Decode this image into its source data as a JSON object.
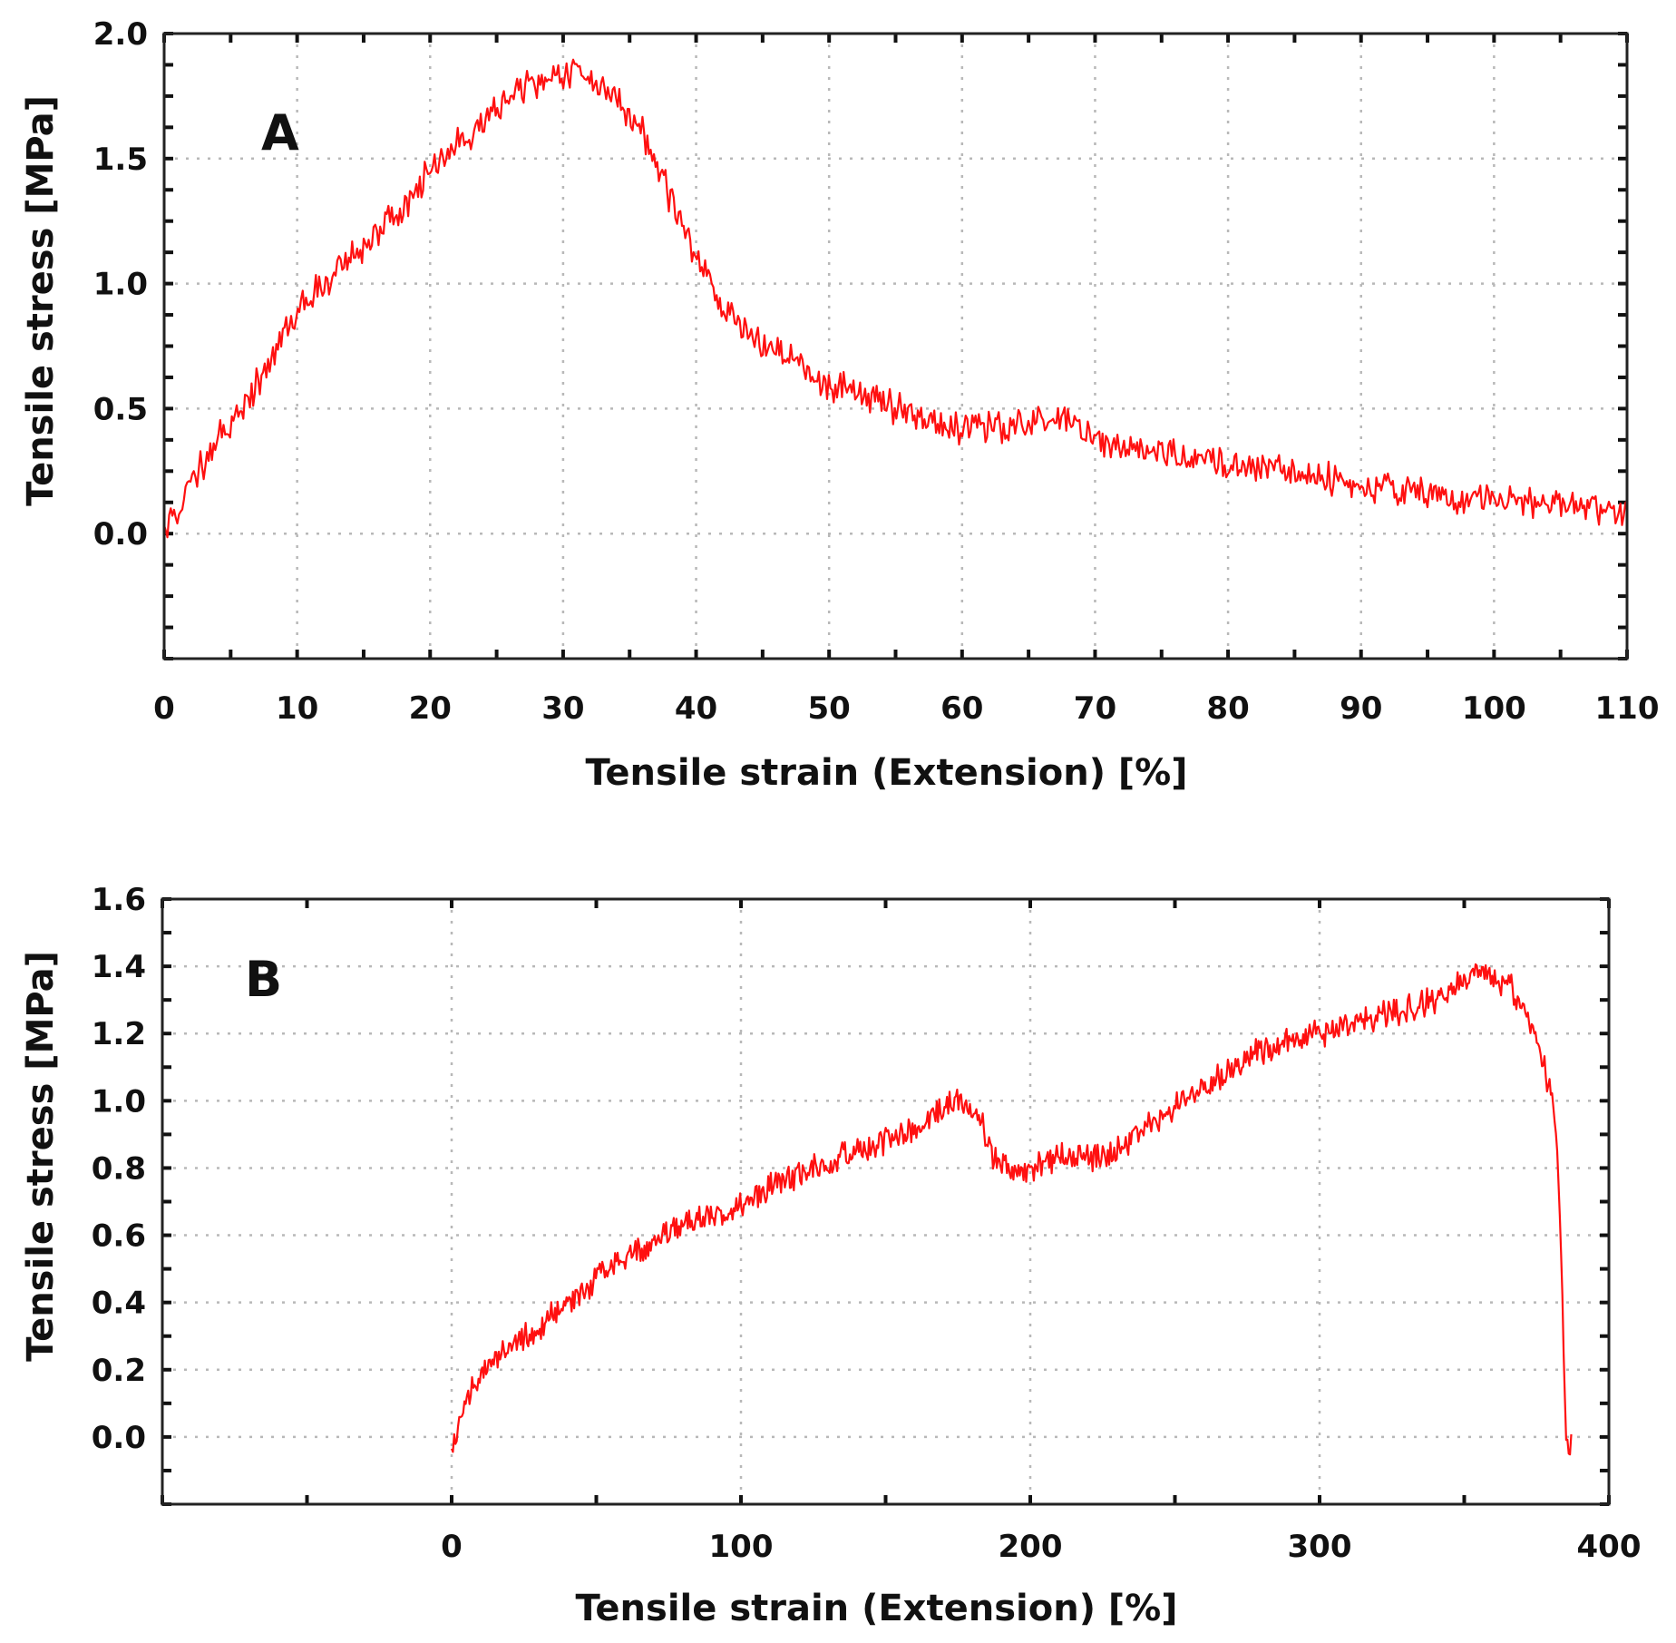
{
  "chart_data": [
    {
      "type": "line",
      "panel_label": "A",
      "xlabel": "Tensile strain (Extension) [%]",
      "ylabel": "Tensile stress [MPa]",
      "xlim": [
        0,
        110
      ],
      "ylim": [
        -0.5,
        2.0
      ],
      "x_ticks": [
        "0",
        "10",
        "20",
        "30",
        "40",
        "50",
        "60",
        "70",
        "80",
        "90",
        "100",
        "110"
      ],
      "y_ticks": [
        "0.0",
        "0.5",
        "1.0",
        "1.5",
        "2.0"
      ],
      "grid": true,
      "series": [
        {
          "name": "A",
          "color": "#ff1010",
          "noise": 0.07,
          "x": [
            0,
            2,
            5,
            8,
            10,
            12,
            15,
            18,
            20,
            23,
            26,
            28,
            30,
            32,
            34,
            36,
            38,
            40,
            42,
            45,
            48,
            50,
            53,
            55,
            58,
            60,
            63,
            66,
            68,
            70,
            73,
            76,
            80,
            85,
            90,
            95,
            100,
            105,
            110
          ],
          "y": [
            0.0,
            0.2,
            0.45,
            0.68,
            0.88,
            1.0,
            1.15,
            1.3,
            1.45,
            1.6,
            1.75,
            1.8,
            1.85,
            1.82,
            1.75,
            1.6,
            1.35,
            1.1,
            0.9,
            0.75,
            0.66,
            0.6,
            0.55,
            0.5,
            0.45,
            0.42,
            0.43,
            0.46,
            0.44,
            0.38,
            0.34,
            0.32,
            0.28,
            0.24,
            0.2,
            0.16,
            0.13,
            0.11,
            0.1
          ]
        }
      ]
    },
    {
      "type": "line",
      "panel_label": "B",
      "xlabel": "Tensile strain (Extension) [%]",
      "ylabel": "Tensile stress [MPa]",
      "xlim": [
        -100,
        400
      ],
      "ylim": [
        -0.2,
        1.6
      ],
      "x_ticks": [
        "0",
        "100",
        "200",
        "300",
        "400"
      ],
      "y_ticks": [
        "0.0",
        "0.2",
        "0.4",
        "0.6",
        "0.8",
        "1.0",
        "1.2",
        "1.4",
        "1.6"
      ],
      "grid": true,
      "series": [
        {
          "name": "B",
          "color": "#ff1010",
          "noise": 0.045,
          "x": [
            0,
            5,
            10,
            20,
            30,
            40,
            50,
            60,
            70,
            80,
            100,
            120,
            140,
            160,
            175,
            182,
            188,
            195,
            205,
            215,
            225,
            240,
            260,
            280,
            300,
            320,
            340,
            355,
            365,
            372,
            378,
            382,
            384,
            385,
            386,
            387
          ],
          "y": [
            -0.05,
            0.1,
            0.18,
            0.27,
            0.33,
            0.4,
            0.47,
            0.53,
            0.58,
            0.62,
            0.7,
            0.78,
            0.85,
            0.92,
            1.0,
            0.96,
            0.82,
            0.78,
            0.82,
            0.85,
            0.82,
            0.92,
            1.05,
            1.15,
            1.2,
            1.25,
            1.3,
            1.38,
            1.35,
            1.25,
            1.1,
            0.9,
            0.4,
            0.0,
            -0.05,
            0.0
          ]
        }
      ]
    }
  ]
}
